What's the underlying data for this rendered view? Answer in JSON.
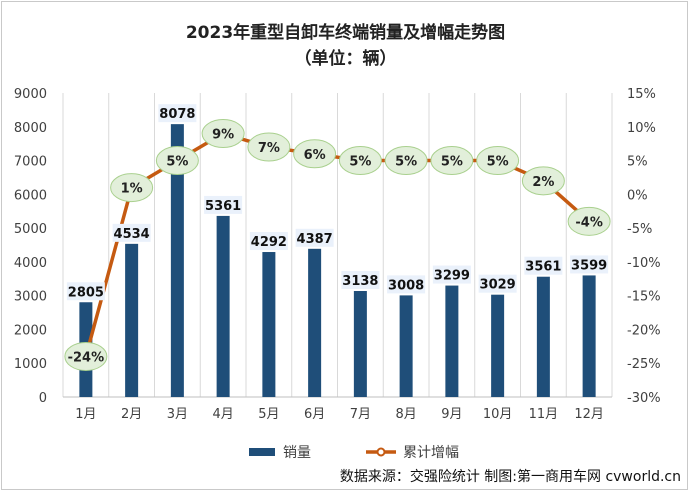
{
  "chart_data": {
    "type": "bar+line",
    "title": "2023年重型自卸车终端销量及增幅走势图",
    "subtitle": "（单位：辆）",
    "categories": [
      "1月",
      "2月",
      "3月",
      "4月",
      "5月",
      "6月",
      "7月",
      "8月",
      "9月",
      "10月",
      "11月",
      "12月"
    ],
    "series": [
      {
        "name": "销量",
        "type": "bar",
        "axis": "left",
        "color": "#1f4e79",
        "values": [
          2805,
          4534,
          8078,
          5361,
          4292,
          4387,
          3138,
          3008,
          3299,
          3029,
          3561,
          3599
        ]
      },
      {
        "name": "累计增幅",
        "type": "line",
        "axis": "right",
        "color": "#c55a11",
        "values": [
          -24,
          1,
          5,
          9,
          7,
          6,
          5,
          5,
          5,
          5,
          2,
          -4
        ],
        "labels": [
          "-24%",
          "1%",
          "5%",
          "9%",
          "7%",
          "6%",
          "5%",
          "5%",
          "5%",
          "5%",
          "2%",
          "-4%"
        ]
      }
    ],
    "y_left": {
      "min": 0,
      "max": 9000,
      "step": 1000,
      "ticks": [
        "0",
        "1000",
        "2000",
        "3000",
        "4000",
        "5000",
        "6000",
        "7000",
        "8000",
        "9000"
      ]
    },
    "y_right": {
      "min": -30,
      "max": 15,
      "step": 5,
      "ticks": [
        "-30%",
        "-25%",
        "-20%",
        "-15%",
        "-10%",
        "-5%",
        "0%",
        "5%",
        "10%",
        "15%"
      ]
    },
    "grid": "vertical",
    "legend": "bottom-center",
    "source": "数据来源：交强险统计 制图:第一商用车网 cvworld.cn"
  }
}
